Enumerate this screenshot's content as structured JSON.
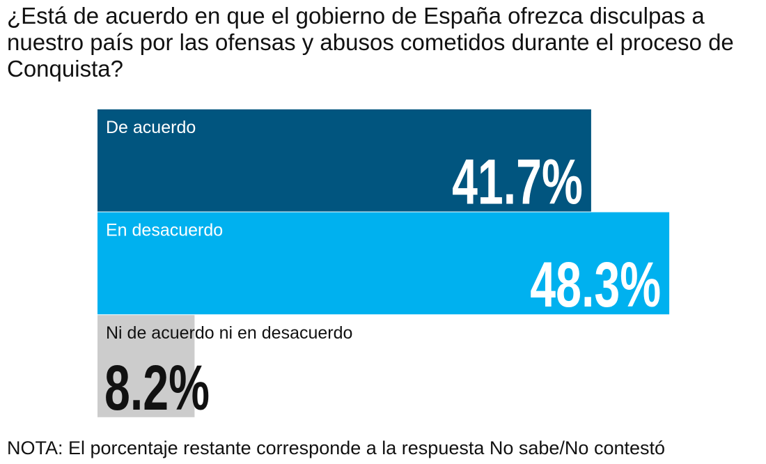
{
  "chart_data": {
    "type": "bar",
    "title": "¿Está de acuerdo en que el gobierno de España ofrezca disculpas a nuestro país por las ofensas y abusos cometidos durante el proceso de Conquista?",
    "categories": [
      "De acuerdo",
      "En desacuerdo",
      "Ni de acuerdo ni en desacuerdo"
    ],
    "series": [
      {
        "name": null,
        "values": [
          41.7,
          48.3,
          8.2
        ],
        "value_labels": [
          "41.7%",
          "48.3%",
          "8.2%"
        ],
        "colors": [
          "#01557f",
          "#00b1ef",
          "#cccccc"
        ]
      }
    ],
    "note": "NOTA: El porcentaje restante corresponde a la respuesta No sabe/No contestó"
  }
}
